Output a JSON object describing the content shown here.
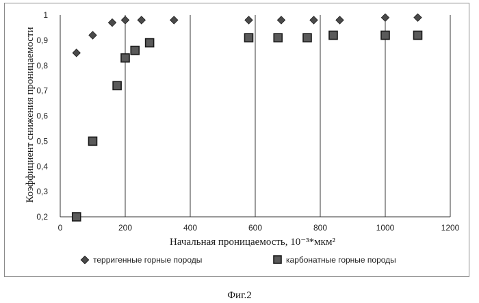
{
  "caption": "Фиг.2",
  "chart_data": {
    "type": "scatter",
    "xlabel": "Начальная проницаемость, 10⁻³*мкм²",
    "ylabel": "Коэффициент снижения проницаемости",
    "xlim": [
      0,
      1200
    ],
    "ylim": [
      0.2,
      1.0
    ],
    "x_ticks": [
      "0",
      "200",
      "400",
      "600",
      "800",
      "1000",
      "1200"
    ],
    "y_ticks": [
      "0,2",
      "0,3",
      "0,4",
      "0,5",
      "0,6",
      "0,7",
      "0,8",
      "0,9",
      "1"
    ],
    "grid": "vertical",
    "legend_position": "bottom",
    "series": [
      {
        "name": "терригенные горные породы",
        "marker": "diamond",
        "color": "#4a4a4a",
        "x": [
          50,
          100,
          160,
          200,
          250,
          350,
          580,
          680,
          780,
          860,
          1000,
          1100
        ],
        "y": [
          0.85,
          0.92,
          0.97,
          0.98,
          0.98,
          0.98,
          0.98,
          0.98,
          0.98,
          0.98,
          0.99,
          0.99
        ]
      },
      {
        "name": "карбонатные горные породы",
        "marker": "square",
        "color": "#5a5a5a",
        "x": [
          50,
          100,
          175,
          200,
          230,
          275,
          580,
          670,
          760,
          840,
          1000,
          1100
        ],
        "y": [
          0.2,
          0.5,
          0.72,
          0.83,
          0.86,
          0.89,
          0.91,
          0.91,
          0.91,
          0.92,
          0.92,
          0.92
        ]
      }
    ]
  }
}
